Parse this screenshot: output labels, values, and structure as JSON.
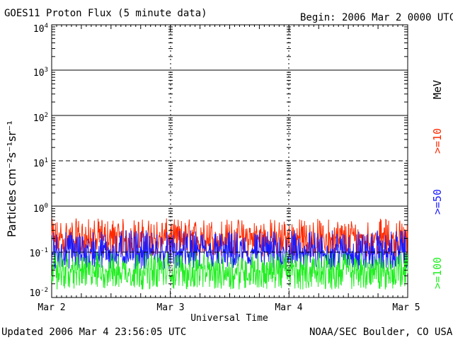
{
  "header": {
    "title": "GOES11 Proton Flux (5 minute data)",
    "begin": "Begin: 2006 Mar 2 0000 UTC"
  },
  "footer": {
    "updated": "Updated 2006 Mar  4 23:56:05 UTC",
    "credit": "NOAA/SEC Boulder, CO USA"
  },
  "axes": {
    "ylabel": "Particles cm⁻²s⁻¹sr⁻¹",
    "xlabel": "Universal Time",
    "y_ticks": [
      {
        "base": "10",
        "exp": "4"
      },
      {
        "base": "10",
        "exp": "3"
      },
      {
        "base": "10",
        "exp": "2"
      },
      {
        "base": "10",
        "exp": "1"
      },
      {
        "base": "10",
        "exp": "0"
      },
      {
        "base": "10",
        "exp": "-1"
      },
      {
        "base": "10",
        "exp": "-2"
      }
    ],
    "x_ticks": [
      "Mar 2",
      "Mar 3",
      "Mar 4",
      "Mar 5"
    ]
  },
  "side_labels": {
    "unit": "MeV",
    "e10": ">=10",
    "e50": ">=50",
    "e100": ">=100"
  },
  "colors": {
    "e10": "#ff2a00",
    "e50": "#1a1aff",
    "e100": "#22ee22",
    "axis": "#000000"
  },
  "chart_data": {
    "type": "line",
    "title": "GOES11 Proton Flux (5 minute data)",
    "xlabel": "Universal Time",
    "ylabel": "Particles cm-2 s-1 sr-1",
    "yscale": "log",
    "ylim": [
      0.01,
      10000
    ],
    "xlim": [
      "2006-03-02 00:00",
      "2006-03-05 00:00"
    ],
    "x_tick_labels": [
      "Mar 2",
      "Mar 3",
      "Mar 4",
      "Mar 5"
    ],
    "reference_lines": [
      {
        "value": 10,
        "style": "dashed"
      },
      {
        "value": 0.1,
        "style": "dashed"
      }
    ],
    "series": [
      {
        "name": ">=10 MeV",
        "color": "#ff2a00",
        "typical": 0.2,
        "min": 0.08,
        "max": 0.55
      },
      {
        "name": ">=50 MeV",
        "color": "#1a1aff",
        "typical": 0.1,
        "min": 0.04,
        "max": 0.3
      },
      {
        "name": ">=100 MeV",
        "color": "#22ee22",
        "typical": 0.04,
        "min": 0.015,
        "max": 0.1
      }
    ]
  }
}
